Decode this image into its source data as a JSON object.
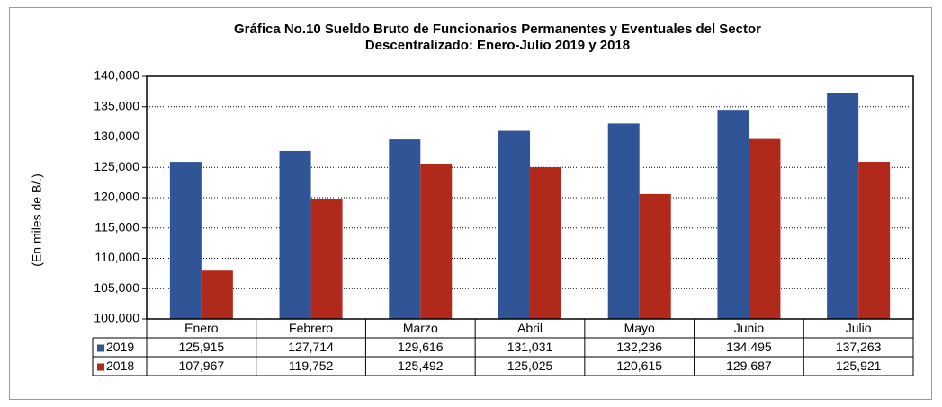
{
  "chart_data": {
    "type": "bar",
    "title": [
      "Gráfica No.10 Sueldo Bruto de Funcionarios Permanentes y Eventuales del Sector",
      "Descentralizado: Enero-Julio 2019 y 2018"
    ],
    "y_label": "(En miles de B/.)",
    "categories": [
      "Enero",
      "Febrero",
      "Marzo",
      "Abril",
      "Mayo",
      "Junio",
      "Julio"
    ],
    "series": [
      {
        "name": "2019",
        "color": "#2f5597",
        "values": [
          125915,
          127714,
          129616,
          131031,
          132236,
          134495,
          137263
        ],
        "value_labels": [
          "125,915",
          "127,714",
          "129,616",
          "131,031",
          "132,236",
          "134,495",
          "137,263"
        ]
      },
      {
        "name": "2018",
        "color": "#b0291a",
        "values": [
          107967,
          119752,
          125492,
          125025,
          120615,
          129687,
          125921
        ],
        "value_labels": [
          "107,967",
          "119,752",
          "125,492",
          "125,025",
          "120,615",
          "129,687",
          "125,921"
        ]
      }
    ],
    "ylim": [
      100000,
      140000
    ],
    "yticks": [
      {
        "value": 100000,
        "label": "100,000"
      },
      {
        "value": 105000,
        "label": "105,000"
      },
      {
        "value": 110000,
        "label": "110,000"
      },
      {
        "value": 115000,
        "label": "115,000"
      },
      {
        "value": 120000,
        "label": "120,000"
      },
      {
        "value": 125000,
        "label": "125,000"
      },
      {
        "value": 130000,
        "label": "130,000"
      },
      {
        "value": 135000,
        "label": "135,000"
      },
      {
        "value": 140000,
        "label": "140,000"
      }
    ],
    "grid": true
  }
}
